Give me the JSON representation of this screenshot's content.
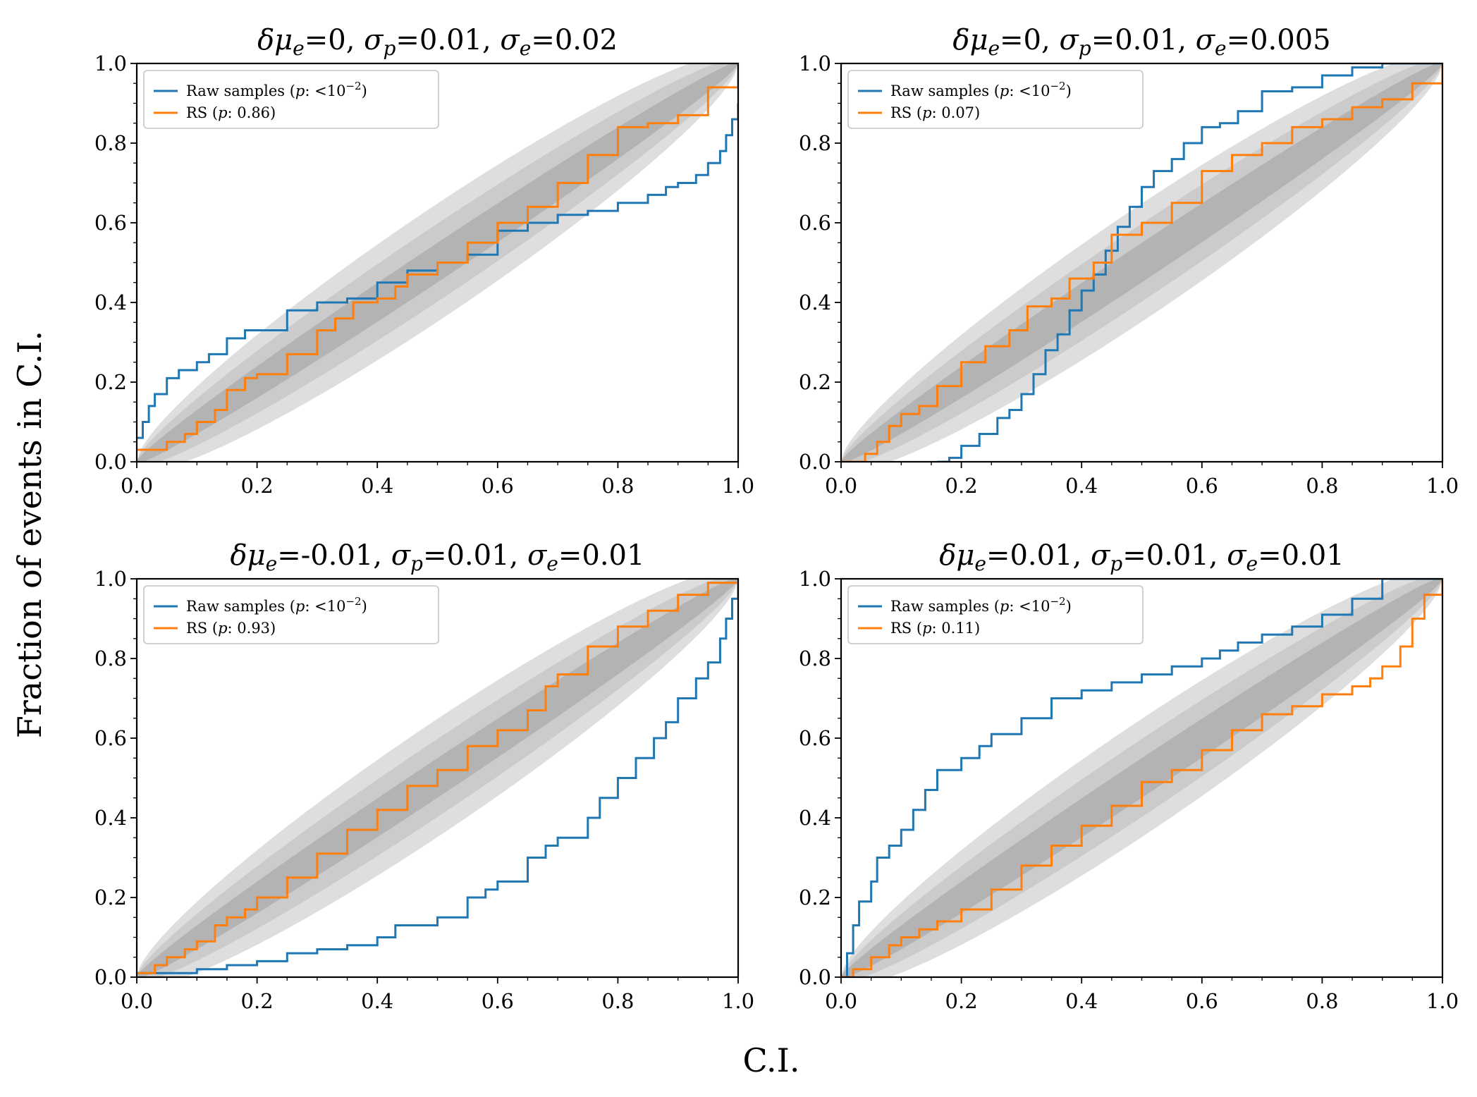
{
  "figure": {
    "xlabel": "C.I.",
    "ylabel": "Fraction of events in C.I."
  },
  "colors": {
    "raw": "#1f77b4",
    "rs": "#ff7f0e",
    "band_outer": "#dedede",
    "band_mid": "#cbcbcb",
    "band_inner": "#b3b3b3"
  },
  "chart_data": [
    {
      "type": "line",
      "title": {
        "mu": "0",
        "sp": "0.01",
        "se": "0.02"
      },
      "xlim": [
        0,
        1
      ],
      "ylim": [
        0,
        1
      ],
      "xticks": [
        "0.0",
        "0.2",
        "0.4",
        "0.6",
        "0.8",
        "1.0"
      ],
      "yticks": [
        "0.0",
        "0.2",
        "0.4",
        "0.6",
        "0.8",
        "1.0"
      ],
      "legend_position": "upper left",
      "series": [
        {
          "name": "Raw samples",
          "p": "<10",
          "p_exp": "−2",
          "x": [
            0,
            0.01,
            0.02,
            0.03,
            0.05,
            0.07,
            0.1,
            0.12,
            0.15,
            0.18,
            0.2,
            0.25,
            0.3,
            0.35,
            0.4,
            0.45,
            0.5,
            0.55,
            0.6,
            0.65,
            0.7,
            0.75,
            0.8,
            0.85,
            0.88,
            0.9,
            0.93,
            0.95,
            0.97,
            0.98,
            0.99,
            1.0
          ],
          "y": [
            0.06,
            0.1,
            0.14,
            0.17,
            0.21,
            0.23,
            0.25,
            0.27,
            0.31,
            0.33,
            0.33,
            0.38,
            0.4,
            0.41,
            0.45,
            0.48,
            0.5,
            0.52,
            0.58,
            0.6,
            0.62,
            0.63,
            0.65,
            0.67,
            0.69,
            0.7,
            0.72,
            0.75,
            0.78,
            0.82,
            0.86,
            0.9
          ]
        },
        {
          "name": "RS",
          "p": "0.86",
          "p_exp": "",
          "x": [
            0,
            0.02,
            0.05,
            0.08,
            0.1,
            0.13,
            0.15,
            0.18,
            0.2,
            0.25,
            0.3,
            0.33,
            0.36,
            0.4,
            0.43,
            0.45,
            0.5,
            0.55,
            0.6,
            0.65,
            0.7,
            0.75,
            0.8,
            0.85,
            0.9,
            0.95,
            1.0
          ],
          "y": [
            0.03,
            0.03,
            0.05,
            0.07,
            0.1,
            0.13,
            0.18,
            0.21,
            0.22,
            0.27,
            0.33,
            0.36,
            0.4,
            0.41,
            0.44,
            0.47,
            0.5,
            0.55,
            0.6,
            0.64,
            0.7,
            0.77,
            0.84,
            0.85,
            0.87,
            0.94,
            1.0
          ]
        }
      ]
    },
    {
      "type": "line",
      "title": {
        "mu": "0",
        "sp": "0.01",
        "se": "0.005"
      },
      "xlim": [
        0,
        1
      ],
      "ylim": [
        0,
        1
      ],
      "xticks": [
        "0.0",
        "0.2",
        "0.4",
        "0.6",
        "0.8",
        "1.0"
      ],
      "yticks": [
        "0.0",
        "0.2",
        "0.4",
        "0.6",
        "0.8",
        "1.0"
      ],
      "legend_position": "upper left",
      "series": [
        {
          "name": "Raw samples",
          "p": "<10",
          "p_exp": "−2",
          "x": [
            0.16,
            0.18,
            0.2,
            0.23,
            0.26,
            0.28,
            0.3,
            0.32,
            0.34,
            0.36,
            0.38,
            0.4,
            0.42,
            0.44,
            0.46,
            0.48,
            0.5,
            0.52,
            0.55,
            0.57,
            0.6,
            0.63,
            0.66,
            0.7,
            0.75,
            0.8,
            0.85,
            0.9,
            1.0
          ],
          "y": [
            0.0,
            0.01,
            0.04,
            0.07,
            0.11,
            0.13,
            0.17,
            0.22,
            0.28,
            0.32,
            0.38,
            0.43,
            0.47,
            0.53,
            0.59,
            0.64,
            0.69,
            0.73,
            0.76,
            0.8,
            0.84,
            0.85,
            0.88,
            0.93,
            0.94,
            0.97,
            0.99,
            1.0,
            1.0
          ]
        },
        {
          "name": "RS",
          "p": "0.07",
          "p_exp": "",
          "x": [
            0,
            0.02,
            0.04,
            0.06,
            0.08,
            0.1,
            0.13,
            0.16,
            0.2,
            0.24,
            0.28,
            0.31,
            0.35,
            0.38,
            0.42,
            0.45,
            0.5,
            0.55,
            0.6,
            0.65,
            0.7,
            0.75,
            0.8,
            0.85,
            0.9,
            0.95,
            1.0
          ],
          "y": [
            0.0,
            0.0,
            0.02,
            0.05,
            0.09,
            0.12,
            0.14,
            0.19,
            0.25,
            0.29,
            0.33,
            0.39,
            0.41,
            0.46,
            0.5,
            0.57,
            0.6,
            0.65,
            0.73,
            0.77,
            0.8,
            0.84,
            0.86,
            0.89,
            0.91,
            0.95,
            1.0
          ]
        }
      ]
    },
    {
      "type": "line",
      "title": {
        "mu": "-0.01",
        "sp": "0.01",
        "se": "0.01"
      },
      "xlim": [
        0,
        1
      ],
      "ylim": [
        0,
        1
      ],
      "xticks": [
        "0.0",
        "0.2",
        "0.4",
        "0.6",
        "0.8",
        "1.0"
      ],
      "yticks": [
        "0.0",
        "0.2",
        "0.4",
        "0.6",
        "0.8",
        "1.0"
      ],
      "legend_position": "upper left",
      "series": [
        {
          "name": "Raw samples",
          "p": "<10",
          "p_exp": "−2",
          "x": [
            0,
            0.05,
            0.1,
            0.15,
            0.2,
            0.25,
            0.3,
            0.35,
            0.4,
            0.43,
            0.45,
            0.5,
            0.55,
            0.58,
            0.6,
            0.65,
            0.68,
            0.7,
            0.75,
            0.77,
            0.8,
            0.83,
            0.86,
            0.88,
            0.9,
            0.93,
            0.95,
            0.97,
            0.98,
            0.99,
            1.0
          ],
          "y": [
            0.01,
            0.01,
            0.02,
            0.03,
            0.04,
            0.06,
            0.07,
            0.08,
            0.1,
            0.13,
            0.13,
            0.15,
            0.2,
            0.22,
            0.24,
            0.3,
            0.33,
            0.35,
            0.4,
            0.45,
            0.5,
            0.55,
            0.6,
            0.64,
            0.7,
            0.75,
            0.79,
            0.85,
            0.9,
            0.95,
            1.0
          ]
        },
        {
          "name": "RS",
          "p": "0.93",
          "p_exp": "",
          "x": [
            0,
            0.03,
            0.05,
            0.08,
            0.1,
            0.13,
            0.15,
            0.18,
            0.2,
            0.25,
            0.3,
            0.35,
            0.4,
            0.45,
            0.5,
            0.55,
            0.6,
            0.65,
            0.68,
            0.7,
            0.75,
            0.8,
            0.85,
            0.9,
            0.95,
            1.0
          ],
          "y": [
            0.01,
            0.03,
            0.05,
            0.07,
            0.09,
            0.13,
            0.15,
            0.17,
            0.2,
            0.25,
            0.31,
            0.37,
            0.42,
            0.48,
            0.52,
            0.58,
            0.62,
            0.67,
            0.73,
            0.76,
            0.83,
            0.88,
            0.92,
            0.96,
            0.99,
            1.0
          ]
        }
      ]
    },
    {
      "type": "line",
      "title": {
        "mu": "0.01",
        "sp": "0.01",
        "se": "0.01"
      },
      "xlim": [
        0,
        1
      ],
      "ylim": [
        0,
        1
      ],
      "xticks": [
        "0.0",
        "0.2",
        "0.4",
        "0.6",
        "0.8",
        "1.0"
      ],
      "yticks": [
        "0.0",
        "0.2",
        "0.4",
        "0.6",
        "0.8",
        "1.0"
      ],
      "legend_position": "upper left",
      "series": [
        {
          "name": "Raw samples",
          "p": "<10",
          "p_exp": "−2",
          "x": [
            0,
            0.01,
            0.02,
            0.03,
            0.05,
            0.06,
            0.08,
            0.1,
            0.12,
            0.14,
            0.16,
            0.2,
            0.23,
            0.25,
            0.3,
            0.35,
            0.4,
            0.45,
            0.5,
            0.55,
            0.6,
            0.63,
            0.66,
            0.7,
            0.75,
            0.8,
            0.85,
            0.9,
            1.0
          ],
          "y": [
            0.0,
            0.06,
            0.13,
            0.19,
            0.24,
            0.3,
            0.33,
            0.37,
            0.42,
            0.47,
            0.52,
            0.55,
            0.58,
            0.61,
            0.65,
            0.7,
            0.72,
            0.74,
            0.76,
            0.78,
            0.8,
            0.82,
            0.84,
            0.86,
            0.88,
            0.91,
            0.95,
            1.0,
            1.0
          ]
        },
        {
          "name": "RS",
          "p": "0.11",
          "p_exp": "",
          "x": [
            0,
            0.02,
            0.05,
            0.08,
            0.1,
            0.13,
            0.16,
            0.2,
            0.25,
            0.3,
            0.35,
            0.4,
            0.45,
            0.5,
            0.55,
            0.6,
            0.65,
            0.7,
            0.75,
            0.8,
            0.85,
            0.88,
            0.9,
            0.93,
            0.95,
            0.97,
            1.0
          ],
          "y": [
            0.0,
            0.02,
            0.05,
            0.08,
            0.1,
            0.12,
            0.14,
            0.17,
            0.22,
            0.28,
            0.33,
            0.38,
            0.43,
            0.49,
            0.52,
            0.57,
            0.62,
            0.66,
            0.68,
            0.71,
            0.73,
            0.75,
            0.78,
            0.83,
            0.9,
            0.96,
            1.0
          ]
        }
      ]
    }
  ]
}
